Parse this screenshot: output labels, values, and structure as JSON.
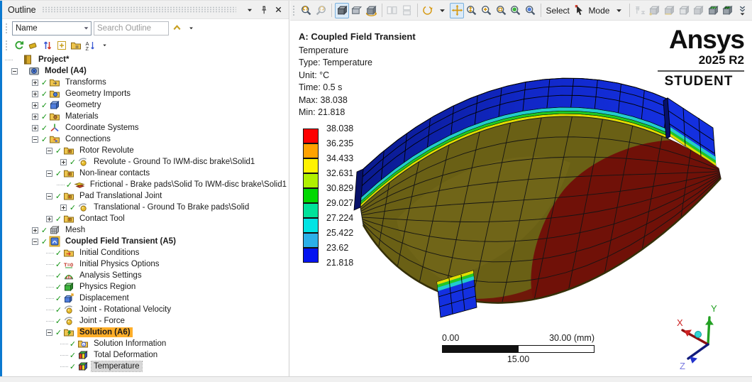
{
  "outline": {
    "title": "Outline",
    "name_filter": "Name",
    "search_placeholder": "Search Outline",
    "header_icons": [
      "caret-down-icon",
      "pin-icon",
      "close-icon"
    ],
    "toolbar_icons": [
      "refresh-icon",
      "filter-eraser-icon",
      "sort-updown-icon",
      "expand-all-icon",
      "folder-options-icon",
      "sort-az-icon",
      "caret-down-icon"
    ],
    "tree": [
      {
        "label": "Project*",
        "level": 0,
        "exp": null,
        "icon": "project",
        "check": false,
        "bold": true,
        "hl": null
      },
      {
        "label": "Model (A4)",
        "level": 1,
        "exp": "-",
        "icon": "model",
        "check": false,
        "bold": true,
        "hl": null
      },
      {
        "label": "Transforms",
        "level": 2,
        "exp": "+",
        "icon": "transforms",
        "check": true,
        "bold": false,
        "hl": null
      },
      {
        "label": "Geometry Imports",
        "level": 2,
        "exp": "+",
        "icon": "geometry-imports",
        "check": true,
        "bold": false,
        "hl": null
      },
      {
        "label": "Geometry",
        "level": 2,
        "exp": "+",
        "icon": "geometry",
        "check": true,
        "bold": false,
        "hl": null
      },
      {
        "label": "Materials",
        "level": 2,
        "exp": "+",
        "icon": "materials",
        "check": true,
        "bold": false,
        "hl": null
      },
      {
        "label": "Coordinate Systems",
        "level": 2,
        "exp": "+",
        "icon": "coordinate-systems",
        "check": true,
        "bold": false,
        "hl": null
      },
      {
        "label": "Connections",
        "level": 2,
        "exp": "-",
        "icon": "connections",
        "check": true,
        "bold": false,
        "hl": null
      },
      {
        "label": "Rotor Revolute",
        "level": 3,
        "exp": "-",
        "icon": "joint-folder",
        "check": true,
        "bold": false,
        "hl": null
      },
      {
        "label": "Revolute - Ground To IWM-disc brake\\Solid1",
        "level": 4,
        "exp": "+",
        "icon": "joint",
        "check": true,
        "bold": false,
        "hl": null
      },
      {
        "label": "Non-linear contacts",
        "level": 3,
        "exp": "-",
        "icon": "joint-folder",
        "check": true,
        "bold": false,
        "hl": null
      },
      {
        "label": "Frictional - Brake pads\\Solid To IWM-disc brake\\Solid1",
        "level": 4,
        "exp": null,
        "icon": "contact",
        "check": true,
        "bold": false,
        "hl": null
      },
      {
        "label": "Pad Translational Joint",
        "level": 3,
        "exp": "-",
        "icon": "joint-folder",
        "check": true,
        "bold": false,
        "hl": null
      },
      {
        "label": "Translational - Ground To Brake pads\\Solid",
        "level": 4,
        "exp": "+",
        "icon": "joint",
        "check": true,
        "bold": false,
        "hl": null
      },
      {
        "label": "Contact Tool",
        "level": 3,
        "exp": "+",
        "icon": "joint-folder",
        "check": true,
        "bold": false,
        "hl": null
      },
      {
        "label": "Mesh",
        "level": 2,
        "exp": "+",
        "icon": "mesh",
        "check": true,
        "bold": false,
        "hl": null
      },
      {
        "label": "Coupled Field Transient (A5)",
        "level": 2,
        "exp": "-",
        "icon": "cft",
        "check": true,
        "bold": true,
        "hl": null
      },
      {
        "label": "Initial Conditions",
        "level": 3,
        "exp": null,
        "icon": "initial-conditions",
        "check": true,
        "bold": false,
        "hl": null
      },
      {
        "label": "Initial Physics Options",
        "level": 3,
        "exp": null,
        "icon": "t0",
        "check": true,
        "bold": false,
        "hl": null
      },
      {
        "label": "Analysis Settings",
        "level": 3,
        "exp": null,
        "icon": "analysis-settings",
        "check": true,
        "bold": false,
        "hl": null
      },
      {
        "label": "Physics Region",
        "level": 3,
        "exp": null,
        "icon": "physics-region",
        "check": true,
        "bold": false,
        "hl": null
      },
      {
        "label": "Displacement",
        "level": 3,
        "exp": null,
        "icon": "displacement",
        "check": true,
        "bold": false,
        "hl": null
      },
      {
        "label": "Joint - Rotational Velocity",
        "level": 3,
        "exp": null,
        "icon": "joint",
        "check": true,
        "bold": false,
        "hl": null
      },
      {
        "label": "Joint - Force",
        "level": 3,
        "exp": null,
        "icon": "joint",
        "check": true,
        "bold": false,
        "hl": null
      },
      {
        "label": "Solution (A6)",
        "level": 3,
        "exp": "-",
        "icon": "solution-folder",
        "check": true,
        "bold": true,
        "hl": "env"
      },
      {
        "label": "Solution Information",
        "level": 4,
        "exp": null,
        "icon": "solution-info",
        "check": true,
        "bold": false,
        "hl": null
      },
      {
        "label": "Total Deformation",
        "level": 4,
        "exp": null,
        "icon": "result-cube",
        "check": true,
        "bold": false,
        "hl": null
      },
      {
        "label": "Temperature",
        "level": 4,
        "exp": null,
        "icon": "result-cube",
        "check": true,
        "bold": false,
        "hl": "selected"
      }
    ]
  },
  "gfx_toolbar": {
    "select_label": "Select",
    "mode_label": "Mode",
    "items": [
      {
        "t": "icon",
        "n": "zoom-undo"
      },
      {
        "t": "icon",
        "n": "zoom-redo",
        "dis": true
      },
      {
        "t": "sep"
      },
      {
        "t": "icon",
        "n": "iso-view",
        "act": true
      },
      {
        "t": "icon",
        "n": "look-at"
      },
      {
        "t": "icon",
        "n": "rotate-mode"
      },
      {
        "t": "sep"
      },
      {
        "t": "icon",
        "n": "split-h",
        "dis": true
      },
      {
        "t": "icon",
        "n": "split-v",
        "dis": true
      },
      {
        "t": "sep"
      },
      {
        "t": "icon",
        "n": "orbit"
      },
      {
        "t": "icon",
        "n": "caret-down-icon"
      },
      {
        "t": "icon",
        "n": "pan",
        "act": true
      },
      {
        "t": "icon",
        "n": "zoom-updown"
      },
      {
        "t": "icon",
        "n": "zoom-in"
      },
      {
        "t": "icon",
        "n": "zoom-box"
      },
      {
        "t": "icon",
        "n": "zoom-fit"
      },
      {
        "t": "icon",
        "n": "zoom-globe"
      },
      {
        "t": "sep"
      },
      {
        "t": "label",
        "bind": "gfx_toolbar.select_label"
      },
      {
        "t": "icon",
        "n": "cursor"
      },
      {
        "t": "label",
        "bind": "gfx_toolbar.mode_label"
      },
      {
        "t": "icon",
        "n": "caret-down-icon"
      },
      {
        "t": "sep"
      },
      {
        "t": "icon",
        "n": "filter-topology",
        "dis": true
      },
      {
        "t": "icon",
        "n": "select-vertex",
        "dis": true
      },
      {
        "t": "icon",
        "n": "select-edge",
        "dis": true
      },
      {
        "t": "icon",
        "n": "select-face",
        "dis": true
      },
      {
        "t": "icon",
        "n": "select-body",
        "dis": true
      },
      {
        "t": "icon",
        "n": "select-node"
      },
      {
        "t": "icon",
        "n": "select-element"
      },
      {
        "t": "icon",
        "n": "chevrons"
      }
    ]
  },
  "viewport": {
    "annotation": {
      "title": "A: Coupled Field Transient",
      "lines": [
        "Temperature",
        "Type: Temperature",
        "Unit: °C",
        "Time: 0.5 s",
        "Max: 38.038",
        "Min: 21.818"
      ]
    },
    "legend": {
      "labels": [
        "38.038",
        "36.235",
        "34.433",
        "32.631",
        "30.829",
        "29.027",
        "27.224",
        "25.422",
        "23.62",
        "21.818"
      ],
      "colors": [
        "#fe0000",
        "#ffa200",
        "#fff200",
        "#b0f000",
        "#00d800",
        "#00e29a",
        "#00e4e4",
        "#2cb0e8",
        "#0414f0"
      ]
    },
    "logo": {
      "brand": "Ansys",
      "version": "2025 R2",
      "edition": "STUDENT"
    },
    "ruler": {
      "start": "0.00",
      "mid": "15.00",
      "end": "30.00 (mm)"
    },
    "triad": {
      "x": "X",
      "y": "Y",
      "z": "Z"
    }
  },
  "colors": {
    "hl_env": "#ffae29",
    "surface": "#6a6015",
    "surface_light": "#7a7020",
    "hot": "#701108",
    "pad_dark": "#0a1a8e",
    "pad_bright": "#1430e0",
    "band_yellow": "#e2de00",
    "band_green": "#22c822",
    "band_cyan": "#22cccc",
    "triad_x": "#cc2222",
    "triad_y": "#22a022",
    "triad_z": "#2233cc"
  }
}
